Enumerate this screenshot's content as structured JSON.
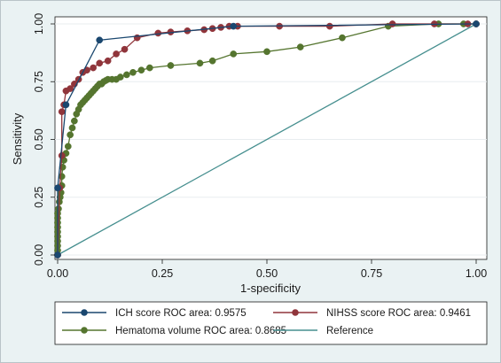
{
  "chart_data": {
    "type": "line",
    "xlabel": "1-specificity",
    "ylabel": "Sensitivity",
    "xlim": [
      0,
      1
    ],
    "ylim": [
      0,
      1
    ],
    "xticks": [
      "0.00",
      "0.25",
      "0.50",
      "0.75",
      "1.00"
    ],
    "yticks": [
      "0.00",
      "0.25",
      "0.50",
      "0.75",
      "1.00"
    ],
    "grid": true,
    "legend_position": "bottom",
    "series": [
      {
        "name": "ICH score ROC area: 0.9575",
        "color": "#1a476f",
        "markers": true,
        "x": [
          0,
          0,
          0.02,
          0.1,
          0.42,
          1
        ],
        "y": [
          0,
          0.29,
          0.65,
          0.93,
          0.99,
          1
        ]
      },
      {
        "name": "NIHSS score ROC area: 0.9461",
        "color": "#90353b",
        "markers": true,
        "x": [
          0,
          0.005,
          0.01,
          0.01,
          0.015,
          0.02,
          0.03,
          0.04,
          0.05,
          0.06,
          0.07,
          0.085,
          0.1,
          0.12,
          0.14,
          0.16,
          0.19,
          0.24,
          0.27,
          0.31,
          0.35,
          0.37,
          0.39,
          0.41,
          0.43,
          0.53,
          0.65,
          0.8,
          0.9,
          0.98,
          1
        ],
        "y": [
          0,
          0.29,
          0.43,
          0.62,
          0.65,
          0.71,
          0.72,
          0.74,
          0.76,
          0.79,
          0.8,
          0.81,
          0.83,
          0.84,
          0.87,
          0.89,
          0.94,
          0.96,
          0.965,
          0.97,
          0.975,
          0.98,
          0.985,
          0.99,
          0.99,
          0.99,
          0.99,
          1,
          1,
          1,
          1
        ]
      },
      {
        "name": "Hematoma volume ROC area: 0.8685",
        "color": "#55752f",
        "markers": true,
        "x": [
          0,
          0,
          0,
          0,
          0,
          0,
          0,
          0,
          0,
          0,
          0.002,
          0.004,
          0.006,
          0.008,
          0.01,
          0.01,
          0.012,
          0.015,
          0.02,
          0.025,
          0.03,
          0.035,
          0.04,
          0.045,
          0.05,
          0.055,
          0.06,
          0.065,
          0.07,
          0.075,
          0.08,
          0.085,
          0.09,
          0.095,
          0.1,
          0.105,
          0.11,
          0.115,
          0.12,
          0.13,
          0.14,
          0.15,
          0.165,
          0.18,
          0.2,
          0.22,
          0.27,
          0.34,
          0.37,
          0.42,
          0.5,
          0.58,
          0.68,
          0.79,
          0.91,
          0.97,
          1
        ],
        "y": [
          0,
          0.02,
          0.04,
          0.06,
          0.08,
          0.1,
          0.12,
          0.14,
          0.16,
          0.18,
          0.2,
          0.23,
          0.25,
          0.27,
          0.3,
          0.34,
          0.38,
          0.41,
          0.44,
          0.47,
          0.52,
          0.55,
          0.58,
          0.61,
          0.63,
          0.65,
          0.66,
          0.67,
          0.68,
          0.69,
          0.7,
          0.71,
          0.72,
          0.73,
          0.74,
          0.74,
          0.75,
          0.755,
          0.76,
          0.76,
          0.76,
          0.77,
          0.78,
          0.79,
          0.8,
          0.81,
          0.82,
          0.83,
          0.84,
          0.87,
          0.88,
          0.9,
          0.94,
          0.99,
          1,
          1,
          1
        ]
      },
      {
        "name": "Reference",
        "color": "#468f8f",
        "markers": false,
        "x": [
          0,
          1
        ],
        "y": [
          0,
          1
        ]
      }
    ]
  }
}
